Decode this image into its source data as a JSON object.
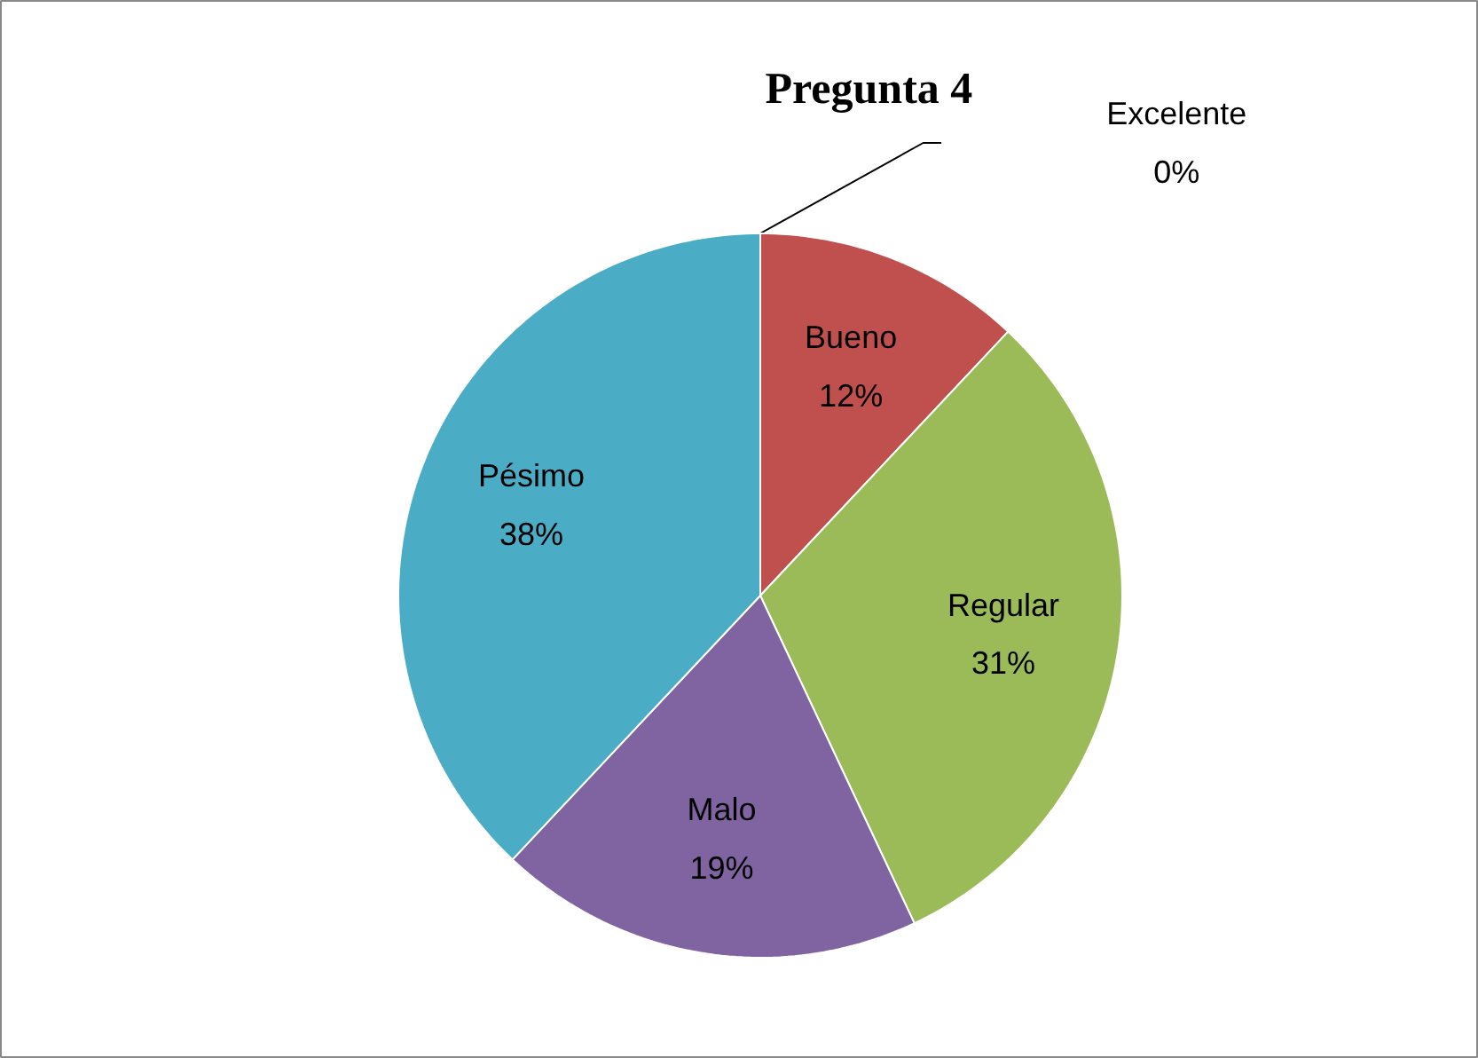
{
  "chart_data": {
    "type": "pie",
    "title": "Pregunta 4",
    "categories": [
      "Excelente",
      "Bueno",
      "Regular",
      "Malo",
      "Pésimo"
    ],
    "values": [
      0,
      12,
      31,
      19,
      38
    ],
    "value_labels": [
      "0%",
      "12%",
      "31%",
      "19%",
      "38%"
    ],
    "colors": [
      "#4f81bd",
      "#c0504d",
      "#9bbb59",
      "#8064a2",
      "#4bacc6"
    ]
  }
}
